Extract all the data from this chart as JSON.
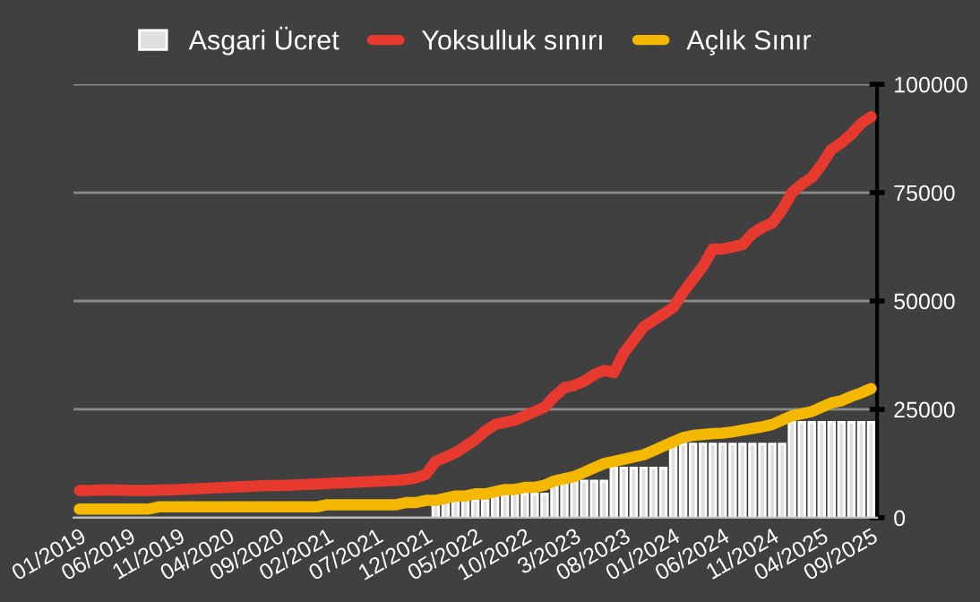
{
  "chart_data": {
    "type": "bar",
    "categories": [
      "01/2019",
      null,
      null,
      null,
      null,
      "06/2019",
      null,
      null,
      null,
      null,
      "11/2019",
      null,
      null,
      null,
      null,
      "04/2020",
      null,
      null,
      null,
      null,
      "09/2020",
      null,
      null,
      null,
      null,
      "02/2021",
      null,
      null,
      null,
      null,
      "07/2021",
      null,
      null,
      null,
      null,
      "12/2021",
      null,
      null,
      null,
      null,
      "05/2022",
      null,
      null,
      null,
      null,
      "10/2022",
      null,
      null,
      null,
      null,
      "3/2023",
      null,
      null,
      null,
      null,
      "08/2023",
      null,
      null,
      null,
      null,
      "01/2024",
      null,
      null,
      null,
      null,
      "06/2024",
      null,
      null,
      null,
      null,
      "11/2024",
      null,
      null,
      null,
      null,
      "04/2025",
      null,
      null,
      null,
      null,
      "09/2025"
    ],
    "series": [
      {
        "name": "Asgari Ücret",
        "color": "#e0e0e0",
        "values": [
          null,
          null,
          null,
          null,
          null,
          null,
          null,
          null,
          null,
          null,
          null,
          null,
          null,
          null,
          null,
          null,
          null,
          null,
          null,
          null,
          null,
          null,
          null,
          null,
          null,
          null,
          null,
          null,
          null,
          null,
          null,
          null,
          null,
          null,
          null,
          null,
          4000,
          4000,
          4000,
          4000,
          4000,
          4000,
          5500,
          5500,
          5500,
          5500,
          5500,
          5500,
          8500,
          8500,
          8500,
          8500,
          8500,
          8500,
          11500,
          11500,
          11500,
          11500,
          11500,
          11500,
          17000,
          17000,
          17000,
          17000,
          17000,
          17000,
          17000,
          17000,
          17000,
          17000,
          17000,
          17000,
          22000,
          22000,
          22000,
          22000,
          22000,
          22000,
          22000,
          22000,
          22000
        ]
      },
      {
        "name": "Yoksulluk sınırı",
        "type": "line",
        "color": "#e8392f",
        "values": [
          6300,
          6300,
          6400,
          6400,
          6400,
          6300,
          6300,
          6300,
          6400,
          6400,
          6500,
          6600,
          6700,
          6800,
          6900,
          7000,
          7100,
          7200,
          7300,
          7400,
          7400,
          7500,
          7600,
          7700,
          7800,
          7900,
          8000,
          8100,
          8200,
          8300,
          8400,
          8500,
          8600,
          8800,
          9200,
          10000,
          13000,
          14000,
          15000,
          16500,
          18000,
          20000,
          21500,
          22000,
          22500,
          23500,
          24500,
          25500,
          28000,
          30000,
          30500,
          31500,
          33000,
          34000,
          33500,
          38000,
          41000,
          44000,
          45500,
          47000,
          48500,
          52000,
          55000,
          58000,
          62000,
          62000,
          62500,
          63000,
          65500,
          67000,
          68000,
          71000,
          75000,
          77000,
          78500,
          81500,
          85000,
          86500,
          88500,
          91000,
          92500
        ]
      },
      {
        "name": "Açlık Sınır",
        "type": "line",
        "color": "#f5b800",
        "values": [
          2000,
          2000,
          2000,
          2000,
          2000,
          2000,
          2000,
          2000,
          2500,
          2500,
          2500,
          2500,
          2500,
          2500,
          2500,
          2500,
          2500,
          2500,
          2500,
          2500,
          2500,
          2500,
          2500,
          2500,
          2500,
          3000,
          3000,
          3000,
          3000,
          3000,
          3000,
          3000,
          3000,
          3500,
          3500,
          4000,
          4000,
          4500,
          5000,
          5000,
          5500,
          5500,
          6000,
          6500,
          6500,
          7000,
          7000,
          7500,
          8500,
          9000,
          9500,
          10500,
          11500,
          12500,
          13000,
          13500,
          14000,
          14500,
          15500,
          16500,
          17500,
          18500,
          19000,
          19200,
          19400,
          19500,
          19800,
          20200,
          20600,
          21000,
          21500,
          22500,
          23500,
          24000,
          24500,
          25500,
          26500,
          27000,
          28000,
          28800,
          29800
        ]
      }
    ],
    "ylim": [
      0,
      100000
    ],
    "yticks": [
      0,
      25000,
      50000,
      75000,
      100000
    ],
    "grid": "y",
    "legend": "top"
  }
}
